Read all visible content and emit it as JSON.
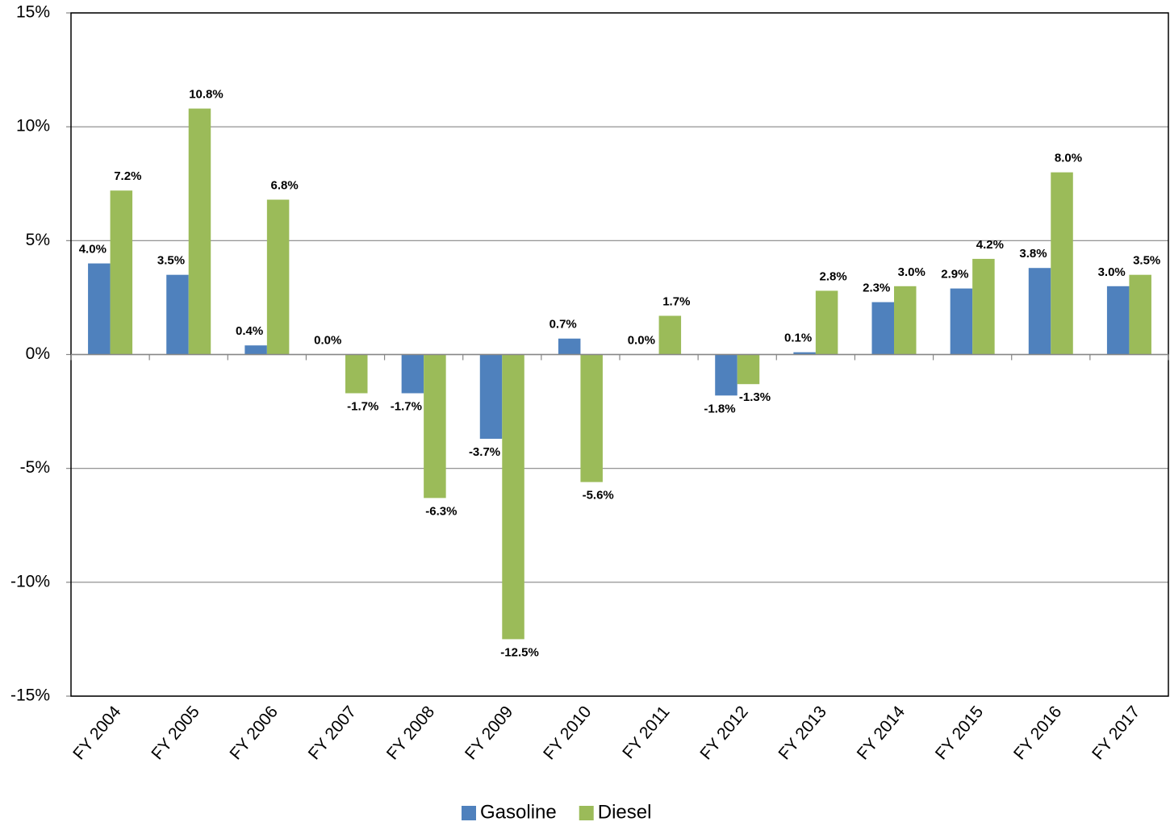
{
  "chart_data": {
    "type": "bar",
    "categories": [
      "FY 2004",
      "FY 2005",
      "FY 2006",
      "FY 2007",
      "FY 2008",
      "FY 2009",
      "FY 2010",
      "FY 2011",
      "FY 2012",
      "FY 2013",
      "FY 2014",
      "FY 2015",
      "FY 2016",
      "FY 2017"
    ],
    "series": [
      {
        "name": "Gasoline",
        "color": "#4f81bd",
        "values": [
          4.0,
          3.5,
          0.4,
          0.0,
          -1.7,
          -3.7,
          0.7,
          0.0,
          -1.8,
          0.1,
          2.3,
          2.9,
          3.8,
          3.0
        ],
        "value_labels": [
          "4.0%",
          "3.5%",
          "0.4%",
          "0.0%",
          "-1.7%",
          "-3.7%",
          "0.7%",
          "0.0%",
          "-1.8%",
          "0.1%",
          "2.3%",
          "2.9%",
          "3.8%",
          "3.0%"
        ]
      },
      {
        "name": "Diesel",
        "color": "#9bbb59",
        "values": [
          7.2,
          10.8,
          6.8,
          -1.7,
          -6.3,
          -12.5,
          -5.6,
          1.7,
          -1.3,
          2.8,
          3.0,
          4.2,
          8.0,
          3.5
        ],
        "value_labels": [
          "7.2%",
          "10.8%",
          "6.8%",
          "-1.7%",
          "-6.3%",
          "-12.5%",
          "-5.6%",
          "1.7%",
          "-1.3%",
          "2.8%",
          "3.0%",
          "4.2%",
          "8.0%",
          "3.5%"
        ]
      }
    ],
    "ylim": [
      -15,
      15
    ],
    "yticks": [
      {
        "value": -15,
        "label": "-15%"
      },
      {
        "value": -10,
        "label": "-10%"
      },
      {
        "value": -5,
        "label": "-5%"
      },
      {
        "value": 0,
        "label": "0%"
      },
      {
        "value": 5,
        "label": "5%"
      },
      {
        "value": 10,
        "label": "10%"
      },
      {
        "value": 15,
        "label": "15%"
      }
    ],
    "grid": true,
    "legend": "bottom"
  }
}
